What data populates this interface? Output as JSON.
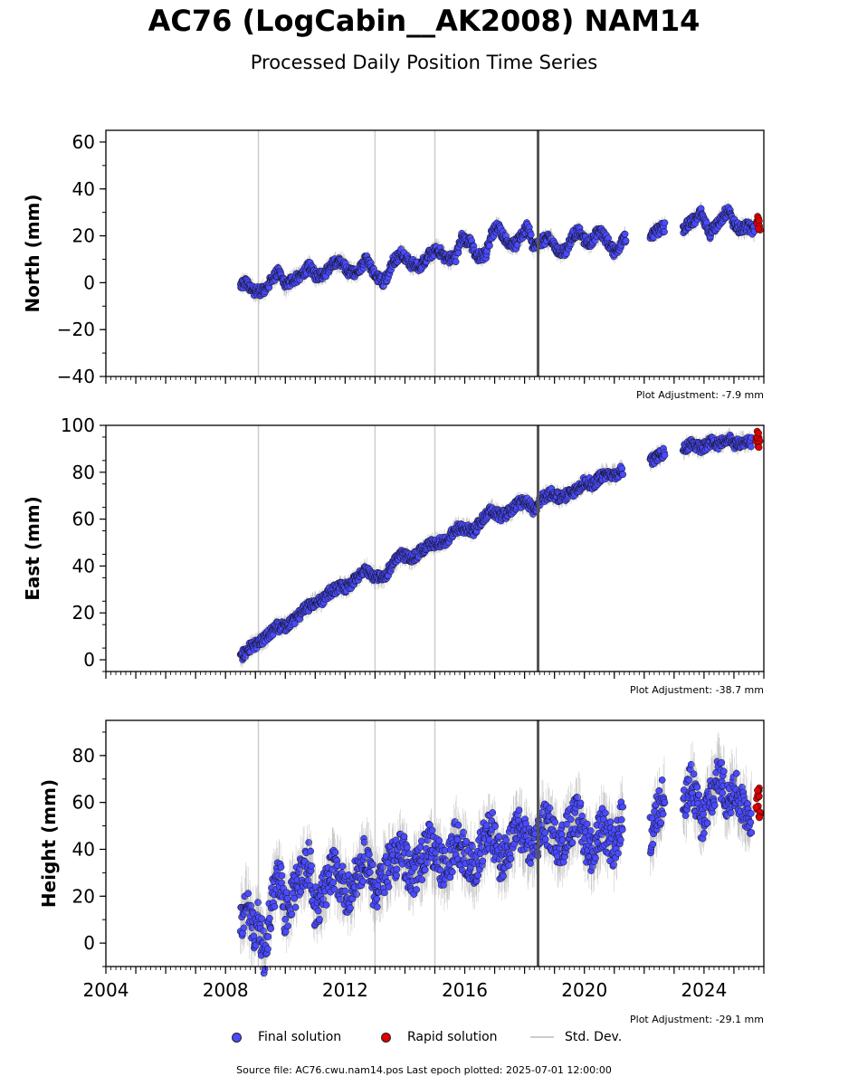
{
  "header": {
    "title": "AC76 (LogCabin__AK2008) NAM14",
    "subtitle": "Processed Daily Position Time Series"
  },
  "footer": {
    "source": "Source file: AC76.cwu.nam14.pos  Last epoch plotted: 2025-07-01 12:00:00"
  },
  "colors": {
    "final": "#4a4aff",
    "rapid": "#e00000",
    "stddev": "#bbbbbb",
    "vline": "#cccccc",
    "eventline": "#555555"
  },
  "chart_data": [
    {
      "type": "scatter",
      "ylabel": "North (mm)",
      "ylim": [
        -40,
        65
      ],
      "yticks": [
        -40,
        -20,
        0,
        20,
        40,
        60
      ],
      "xlim": [
        2004,
        2026
      ],
      "adjustment": "Plot Adjustment: -7.9 mm",
      "reference_lines": [
        2009.1,
        2013.0,
        2015.0
      ],
      "event_line": 2018.45,
      "series": [
        {
          "points": [
            [
              2008.5,
              -1
            ],
            [
              2008.7,
              0
            ],
            [
              2008.9,
              -3
            ],
            [
              2009.1,
              -4
            ],
            [
              2009.3,
              -3
            ],
            [
              2009.6,
              2
            ],
            [
              2009.8,
              5
            ],
            [
              2010.0,
              -2
            ],
            [
              2010.2,
              1
            ],
            [
              2010.5,
              3
            ],
            [
              2010.8,
              7
            ],
            [
              2011.0,
              3
            ],
            [
              2011.3,
              4
            ],
            [
              2011.6,
              8
            ],
            [
              2011.9,
              9
            ],
            [
              2012.1,
              5
            ],
            [
              2012.4,
              4
            ],
            [
              2012.7,
              10
            ],
            [
              2013.0,
              3
            ],
            [
              2013.3,
              0
            ],
            [
              2013.6,
              9
            ],
            [
              2013.9,
              13
            ],
            [
              2014.2,
              8
            ],
            [
              2014.5,
              7
            ],
            [
              2014.8,
              12
            ],
            [
              2015.1,
              14
            ],
            [
              2015.4,
              10
            ],
            [
              2015.7,
              11
            ],
            [
              2015.9,
              19
            ],
            [
              2016.2,
              17
            ],
            [
              2016.4,
              11
            ],
            [
              2016.7,
              12
            ],
            [
              2016.9,
              21
            ],
            [
              2017.1,
              24
            ],
            [
              2017.4,
              18
            ],
            [
              2017.7,
              16
            ],
            [
              2017.9,
              20
            ],
            [
              2018.1,
              24
            ],
            [
              2018.3,
              15
            ],
            [
              2018.6,
              18
            ],
            [
              2018.9,
              19
            ],
            [
              2019.1,
              13
            ],
            [
              2019.4,
              14
            ],
            [
              2019.6,
              20
            ],
            [
              2019.8,
              22
            ],
            [
              2020.0,
              18
            ],
            [
              2020.2,
              17
            ],
            [
              2020.4,
              21
            ],
            [
              2020.6,
              21
            ],
            [
              2021.0,
              13
            ],
            [
              2021.2,
              16
            ],
            [
              2021.4,
              20
            ],
            [
              2022.2,
              20
            ],
            [
              2022.4,
              22
            ],
            [
              2022.7,
              24
            ],
            [
              2023.3,
              23
            ],
            [
              2023.6,
              26
            ],
            [
              2023.9,
              30
            ],
            [
              2024.2,
              21
            ],
            [
              2024.5,
              26
            ],
            [
              2024.8,
              31
            ],
            [
              2025.0,
              25
            ],
            [
              2025.2,
              23
            ],
            [
              2025.5,
              24
            ],
            [
              2025.7,
              22
            ]
          ]
        },
        {
          "points": [
            [
              2025.8,
              25
            ],
            [
              2025.82,
              27
            ],
            [
              2025.84,
              23
            ]
          ]
        }
      ]
    },
    {
      "type": "scatter",
      "ylabel": "East (mm)",
      "ylim": [
        -5,
        100
      ],
      "yticks": [
        0,
        20,
        40,
        60,
        80,
        100
      ],
      "xlim": [
        2004,
        2026
      ],
      "adjustment": "Plot Adjustment: -38.7 mm",
      "reference_lines": [
        2009.1,
        2013.0,
        2015.0
      ],
      "event_line": 2018.45,
      "series": [
        {
          "points": [
            [
              2008.5,
              1
            ],
            [
              2008.7,
              4
            ],
            [
              2008.9,
              6
            ],
            [
              2009.1,
              7
            ],
            [
              2009.4,
              10
            ],
            [
              2009.7,
              14
            ],
            [
              2010.0,
              14
            ],
            [
              2010.3,
              17
            ],
            [
              2010.6,
              21
            ],
            [
              2010.9,
              24
            ],
            [
              2011.2,
              25
            ],
            [
              2011.5,
              29
            ],
            [
              2011.8,
              31
            ],
            [
              2012.1,
              31
            ],
            [
              2012.4,
              35
            ],
            [
              2012.7,
              39
            ],
            [
              2013.0,
              35
            ],
            [
              2013.3,
              35
            ],
            [
              2013.6,
              41
            ],
            [
              2013.9,
              45
            ],
            [
              2014.2,
              43
            ],
            [
              2014.5,
              46
            ],
            [
              2014.8,
              49
            ],
            [
              2015.1,
              50
            ],
            [
              2015.4,
              51
            ],
            [
              2015.7,
              56
            ],
            [
              2016.0,
              56
            ],
            [
              2016.3,
              55
            ],
            [
              2016.6,
              60
            ],
            [
              2016.9,
              64
            ],
            [
              2017.2,
              61
            ],
            [
              2017.5,
              63
            ],
            [
              2017.8,
              67
            ],
            [
              2018.1,
              67
            ],
            [
              2018.3,
              64
            ],
            [
              2018.6,
              69
            ],
            [
              2018.9,
              71
            ],
            [
              2019.2,
              69
            ],
            [
              2019.5,
              71
            ],
            [
              2019.8,
              73
            ],
            [
              2020.0,
              76
            ],
            [
              2020.3,
              75
            ],
            [
              2020.6,
              79
            ],
            [
              2021.0,
              79
            ],
            [
              2021.3,
              81
            ],
            [
              2022.2,
              85
            ],
            [
              2022.5,
              87
            ],
            [
              2022.7,
              89
            ],
            [
              2023.3,
              90
            ],
            [
              2023.6,
              92
            ],
            [
              2023.9,
              90
            ],
            [
              2024.2,
              93
            ],
            [
              2024.5,
              92
            ],
            [
              2024.8,
              95
            ],
            [
              2025.0,
              92
            ],
            [
              2025.3,
              93
            ],
            [
              2025.6,
              93
            ]
          ]
        },
        {
          "points": [
            [
              2025.78,
              94
            ],
            [
              2025.8,
              96
            ],
            [
              2025.83,
              92
            ]
          ]
        }
      ]
    },
    {
      "type": "scatter",
      "ylabel": "Height (mm)",
      "ylim": [
        -10,
        95
      ],
      "yticks": [
        0,
        20,
        40,
        60,
        80
      ],
      "xlim": [
        2004,
        2026
      ],
      "xticks": [
        2004,
        2008,
        2012,
        2016,
        2020,
        2024
      ],
      "adjustment": "Plot Adjustment: -29.1 mm",
      "reference_lines": [
        2009.1,
        2013.0,
        2015.0
      ],
      "event_line": 2018.45,
      "series": [
        {
          "name": "Final solution",
          "points": [
            [
              2008.5,
              8
            ],
            [
              2008.7,
              18
            ],
            [
              2008.9,
              5
            ],
            [
              2009.1,
              10
            ],
            [
              2009.3,
              -5
            ],
            [
              2009.6,
              22
            ],
            [
              2009.8,
              30
            ],
            [
              2010.0,
              12
            ],
            [
              2010.2,
              20
            ],
            [
              2010.5,
              28
            ],
            [
              2010.8,
              35
            ],
            [
              2011.0,
              15
            ],
            [
              2011.3,
              22
            ],
            [
              2011.6,
              32
            ],
            [
              2011.9,
              25
            ],
            [
              2012.1,
              20
            ],
            [
              2012.4,
              28
            ],
            [
              2012.7,
              38
            ],
            [
              2013.0,
              22
            ],
            [
              2013.3,
              30
            ],
            [
              2013.6,
              35
            ],
            [
              2013.9,
              40
            ],
            [
              2014.2,
              28
            ],
            [
              2014.5,
              33
            ],
            [
              2014.8,
              42
            ],
            [
              2015.1,
              36
            ],
            [
              2015.4,
              30
            ],
            [
              2015.7,
              45
            ],
            [
              2016.0,
              38
            ],
            [
              2016.3,
              32
            ],
            [
              2016.6,
              42
            ],
            [
              2016.9,
              48
            ],
            [
              2017.2,
              35
            ],
            [
              2017.5,
              40
            ],
            [
              2017.8,
              50
            ],
            [
              2018.1,
              42
            ],
            [
              2018.3,
              38
            ],
            [
              2018.6,
              52
            ],
            [
              2018.9,
              48
            ],
            [
              2019.2,
              40
            ],
            [
              2019.5,
              50
            ],
            [
              2019.8,
              55
            ],
            [
              2020.0,
              45
            ],
            [
              2020.3,
              38
            ],
            [
              2020.6,
              50
            ],
            [
              2021.0,
              40
            ],
            [
              2021.3,
              55
            ],
            [
              2022.2,
              45
            ],
            [
              2022.5,
              58
            ],
            [
              2022.7,
              65
            ],
            [
              2023.3,
              55
            ],
            [
              2023.6,
              70
            ],
            [
              2023.9,
              50
            ],
            [
              2024.2,
              62
            ],
            [
              2024.5,
              72
            ],
            [
              2024.8,
              60
            ],
            [
              2025.0,
              68
            ],
            [
              2025.3,
              58
            ],
            [
              2025.6,
              55
            ]
          ]
        },
        {
          "name": "Rapid solution",
          "points": [
            [
              2025.78,
              58
            ],
            [
              2025.8,
              62
            ],
            [
              2025.83,
              66
            ],
            [
              2025.85,
              55
            ]
          ]
        }
      ]
    }
  ],
  "legend": {
    "final_label": "Final solution",
    "rapid_label": "Rapid solution",
    "std_label": "Std. Dev."
  }
}
